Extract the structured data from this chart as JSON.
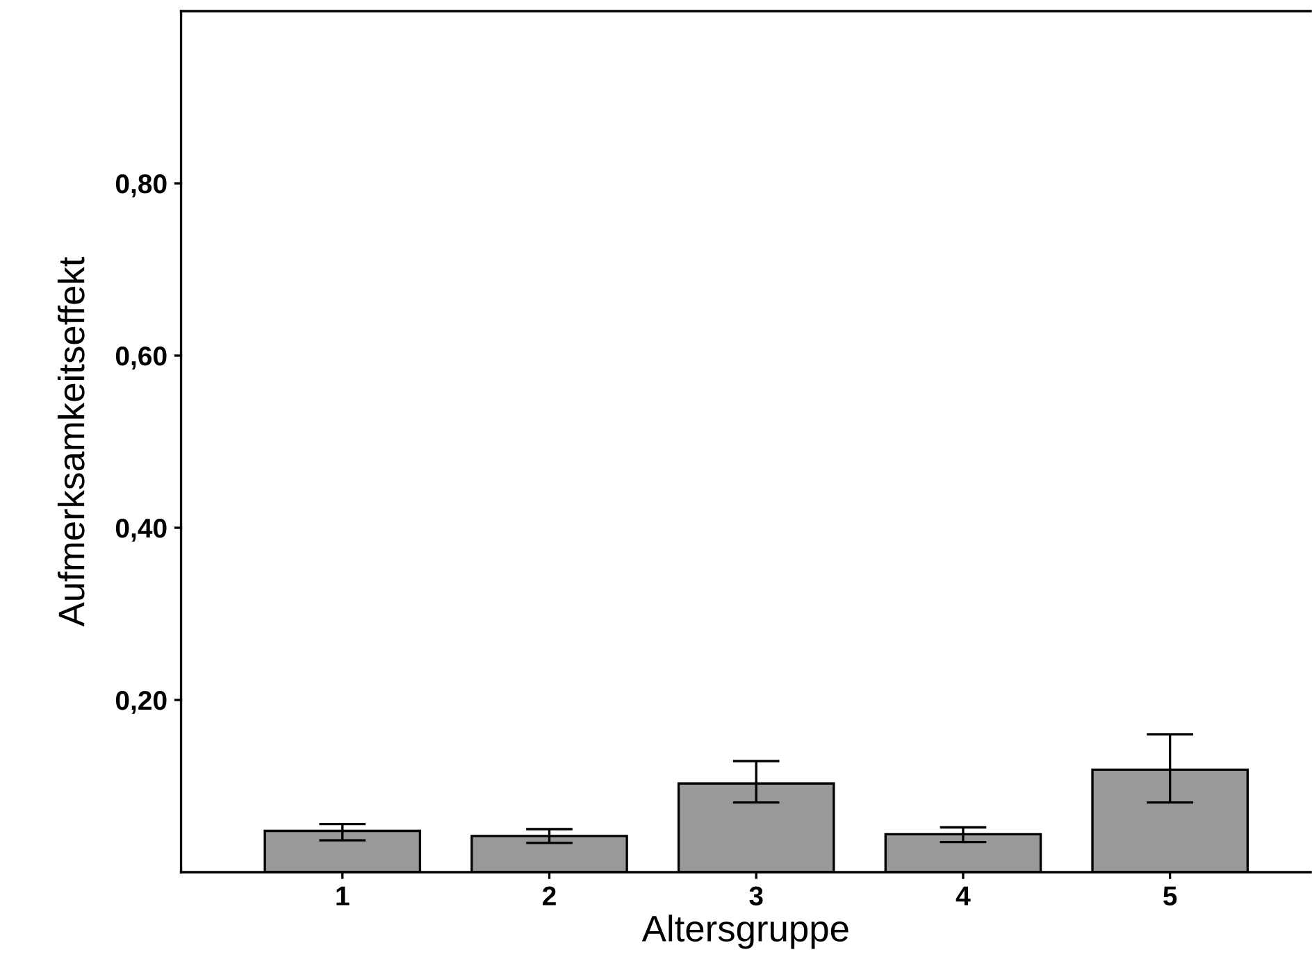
{
  "chart_data": {
    "type": "bar",
    "xlabel": "Altersgruppe",
    "ylabel": "Aufmerksamkeitseffekt",
    "categories": [
      "1",
      "2",
      "3",
      "4",
      "5"
    ],
    "values": [
      0.048,
      0.042,
      0.103,
      0.044,
      0.119
    ],
    "errors": [
      [
        0.037,
        0.056
      ],
      [
        0.034,
        0.05
      ],
      [
        0.081,
        0.129
      ],
      [
        0.035,
        0.052
      ],
      [
        0.081,
        0.16
      ]
    ],
    "color": "#999999",
    "ylim": [
      0,
      1.0
    ],
    "yticks": [
      {
        "value": 0.2,
        "label": "0,20"
      },
      {
        "value": 0.4,
        "label": "0,40"
      },
      {
        "value": 0.6,
        "label": "0,60"
      },
      {
        "value": 0.8,
        "label": "0,80"
      }
    ],
    "grid": false
  }
}
